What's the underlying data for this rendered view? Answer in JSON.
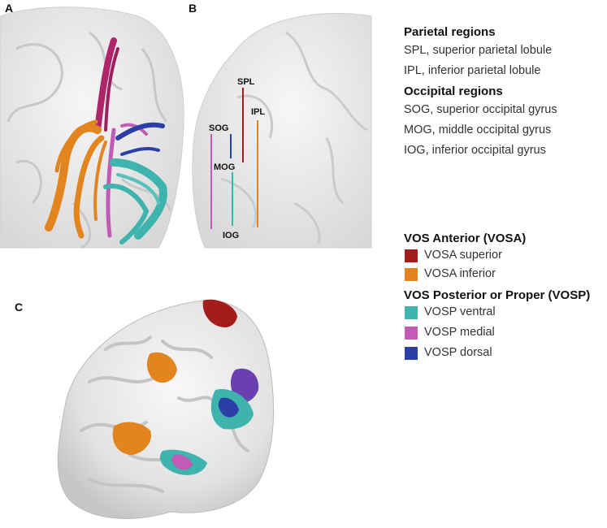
{
  "panels": {
    "a": "A",
    "b": "B",
    "c": "C"
  },
  "region_legend": {
    "parietal_title": "Parietal regions",
    "parietal_items": [
      "SPL, superior parietal lobule",
      "IPL, inferior parietal lobule"
    ],
    "occipital_title": "Occipital regions",
    "occipital_items": [
      "SOG, superior occipital gyrus",
      "MOG, middle occipital gyrus",
      "IOG, inferior occipital gyrus"
    ]
  },
  "region_tags": {
    "spl": "SPL",
    "ipl": "IPL",
    "sog": "SOG",
    "mog": "MOG",
    "iog": "IOG"
  },
  "vos_legend": {
    "anterior_title": "VOS Anterior (VOSA)",
    "anterior_items": [
      {
        "label": "VOSA superior",
        "color": "#a51c1c"
      },
      {
        "label": "VOSA inferior",
        "color": "#e3851f"
      }
    ],
    "posterior_title": "VOS Posterior or Proper (VOSP)",
    "posterior_items": [
      {
        "label": "VOSP ventral",
        "color": "#3fb3ad"
      },
      {
        "label": "VOSP medial",
        "color": "#c25bb6"
      },
      {
        "label": "VOSP dorsal",
        "color": "#2b3fa6"
      }
    ]
  },
  "colors": {
    "vosa_superior": "#a51c1c",
    "vosa_inferior": "#e3851f",
    "vosp_ventral": "#3fb3ad",
    "vosp_medial": "#c25bb6",
    "vosp_dorsal": "#2b3fa6",
    "brain": "#ececec"
  }
}
